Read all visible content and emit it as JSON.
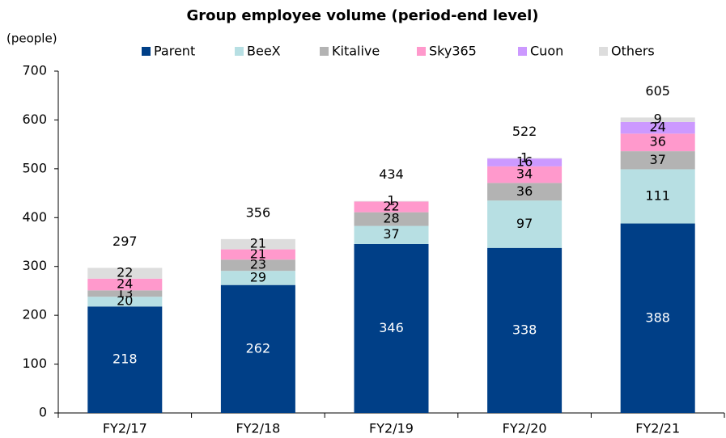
{
  "chart_data": {
    "type": "stacked_bar",
    "title": "Group employee volume (period-end level)",
    "y_axis_label": "(people)",
    "categories": [
      "FY2/17",
      "FY2/18",
      "FY2/19",
      "FY2/20",
      "FY2/21"
    ],
    "series": [
      {
        "name": "Parent",
        "color": "#003f87",
        "values": [
          218,
          262,
          346,
          338,
          388
        ]
      },
      {
        "name": "BeeX",
        "color": "#b7dfe3",
        "values": [
          20,
          29,
          37,
          97,
          111
        ]
      },
      {
        "name": "Kitalive",
        "color": "#b3b3b3",
        "values": [
          13,
          23,
          28,
          36,
          37
        ]
      },
      {
        "name": "Sky365",
        "color": "#ff99cc",
        "values": [
          24,
          21,
          22,
          34,
          36
        ]
      },
      {
        "name": "Cuon",
        "color": "#cc99ff",
        "values": [
          null,
          null,
          null,
          16,
          24
        ]
      },
      {
        "name": "Others",
        "color": "#dddddd",
        "values": [
          22,
          21,
          1,
          1,
          9
        ]
      }
    ],
    "totals": [
      297,
      356,
      434,
      522,
      605
    ],
    "ylim": [
      0,
      700
    ],
    "yticks": [
      0,
      100,
      200,
      300,
      400,
      500,
      600,
      700
    ],
    "grid": false,
    "legend": "top"
  }
}
